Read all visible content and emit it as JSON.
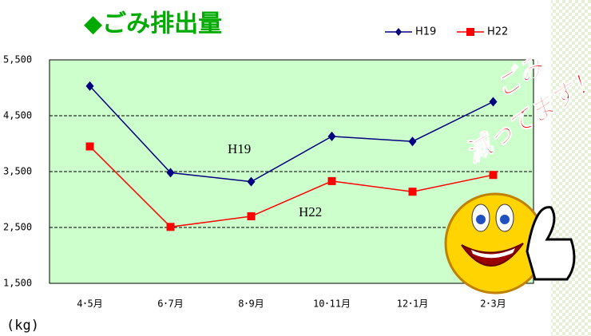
{
  "chart_data": {
    "type": "line",
    "title": "◆ごみ排出量",
    "y_unit": "(kg)",
    "categories": [
      "4･5月",
      "6･7月",
      "8･9月",
      "10･11月",
      "12･1月",
      "2･3月"
    ],
    "series": [
      {
        "name": "H19",
        "color": "#000080",
        "values": [
          5030,
          3480,
          3320,
          4130,
          4040,
          4750
        ]
      },
      {
        "name": "H22",
        "color": "#ff0000",
        "values": [
          3950,
          2510,
          2700,
          3330,
          3140,
          3440
        ]
      }
    ],
    "ylim": [
      1500,
      5500
    ],
    "yticks": [
      {
        "value": 1500,
        "label": "1,500"
      },
      {
        "value": 2500,
        "label": "2,500"
      },
      {
        "value": 3500,
        "label": "3,500"
      },
      {
        "value": 4500,
        "label": "4,500"
      },
      {
        "value": 5500,
        "label": "5,500"
      }
    ],
    "grid": true,
    "annotations": [
      "H19",
      "H22"
    ],
    "callout": [
      "ごみ",
      "減ってます！"
    ]
  }
}
